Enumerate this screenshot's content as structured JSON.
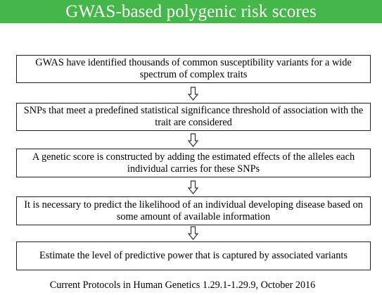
{
  "title": "GWAS-based polygenic risk scores",
  "colors": {
    "title_background": "#45b649",
    "title_text": "#ffffff",
    "box_border": "#1f1f1f",
    "arrow_stroke": "#333333"
  },
  "steps": [
    {
      "text": "GWAS have identified thousands of common susceptibility variants for a wide spectrum of complex traits"
    },
    {
      "text": "SNPs that meet a predefined statistical significance threshold of association with the trait are considered"
    },
    {
      "text": "A genetic score is constructed by adding the estimated effects of the alleles each individual carries for these SNPs"
    },
    {
      "text": "It is necessary to predict the likelihood of an individual developing disease based on some amount of available information"
    },
    {
      "text": "Estimate the level of predictive power that is captured by associated variants"
    }
  ],
  "arrow_icon": "down-arrow-icon",
  "citation": "Current Protocols in Human Genetics 1.29.1-1.29.9, October 2016"
}
